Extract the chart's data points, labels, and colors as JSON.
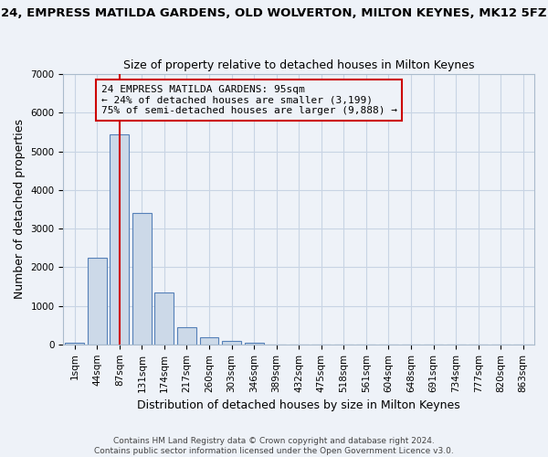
{
  "title": "24, EMPRESS MATILDA GARDENS, OLD WOLVERTON, MILTON KEYNES, MK12 5FZ",
  "subtitle": "Size of property relative to detached houses in Milton Keynes",
  "xlabel": "Distribution of detached houses by size in Milton Keynes",
  "ylabel": "Number of detached properties",
  "bar_labels": [
    "1sqm",
    "44sqm",
    "87sqm",
    "131sqm",
    "174sqm",
    "217sqm",
    "260sqm",
    "303sqm",
    "346sqm",
    "389sqm",
    "432sqm",
    "475sqm",
    "518sqm",
    "561sqm",
    "604sqm",
    "648sqm",
    "691sqm",
    "734sqm",
    "777sqm",
    "820sqm",
    "863sqm"
  ],
  "bar_values": [
    50,
    2250,
    5450,
    3400,
    1350,
    450,
    175,
    100,
    50,
    0,
    0,
    0,
    0,
    0,
    0,
    0,
    0,
    0,
    0,
    0,
    0
  ],
  "bar_color": "#ccd9e8",
  "bar_edge_color": "#5580b8",
  "vline_x": 2.0,
  "vline_color": "#cc0000",
  "annotation_box_color": "#cc0000",
  "annotation_line1": "24 EMPRESS MATILDA GARDENS: 95sqm",
  "annotation_line2": "← 24% of detached houses are smaller (3,199)",
  "annotation_line3": "75% of semi-detached houses are larger (9,888) →",
  "ylim": [
    0,
    7000
  ],
  "yticks": [
    0,
    1000,
    2000,
    3000,
    4000,
    5000,
    6000,
    7000
  ],
  "grid_color": "#c8d4e4",
  "footer1": "Contains HM Land Registry data © Crown copyright and database right 2024.",
  "footer2": "Contains public sector information licensed under the Open Government Licence v3.0.",
  "bg_color": "#eef2f8",
  "title_fontsize": 9.5,
  "subtitle_fontsize": 9,
  "label_fontsize": 9,
  "tick_fontsize": 7.5,
  "footer_fontsize": 6.5
}
